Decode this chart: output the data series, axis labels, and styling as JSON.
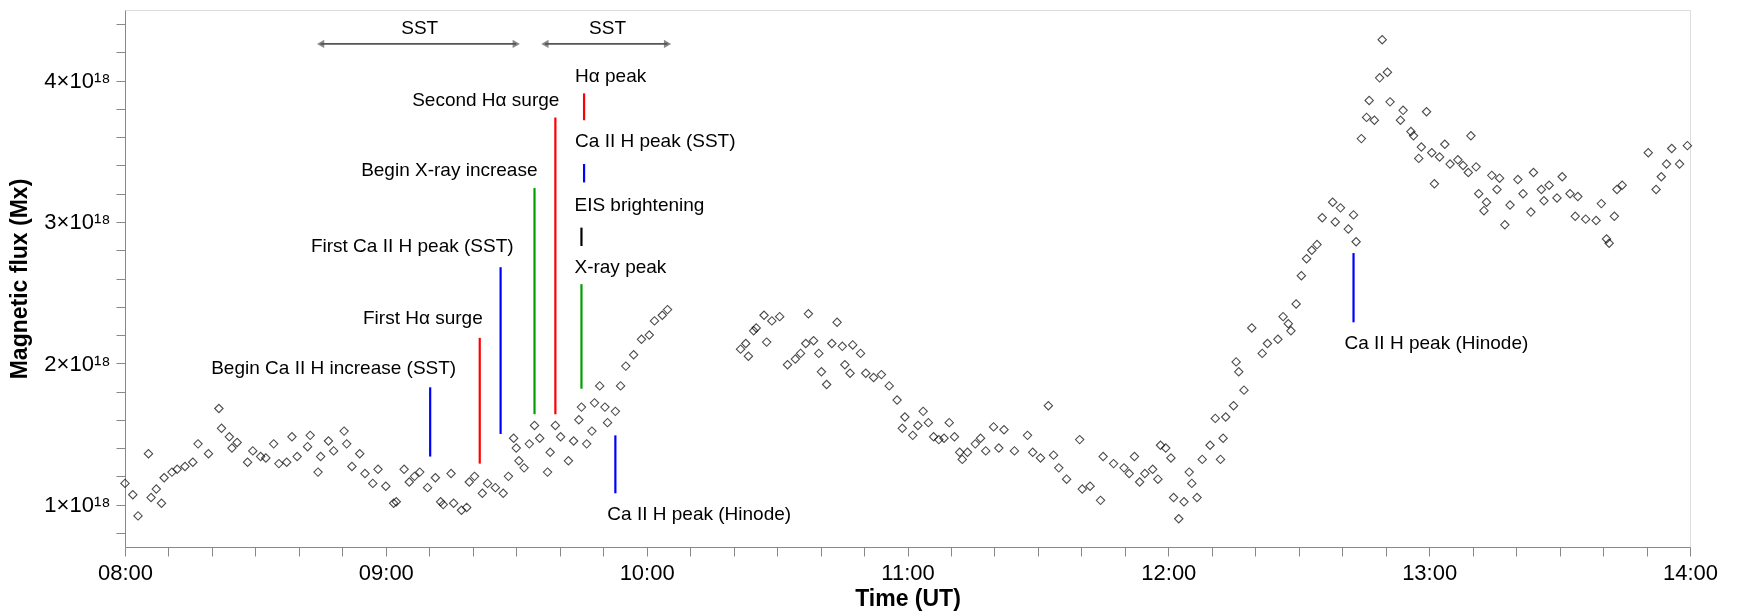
{
  "chart_data": {
    "type": "scatter",
    "xlabel": "Time (UT)",
    "ylabel": "Magnetic flux (Mx)",
    "xlim": [
      8,
      14
    ],
    "ylim": [
      7e+17,
      4.5e+18
    ],
    "grid": false,
    "xticks": [
      {
        "value": 8,
        "label": "08:00"
      },
      {
        "value": 8.1667,
        "label": null
      },
      {
        "value": 8.3333,
        "label": null
      },
      {
        "value": 8.5,
        "label": null
      },
      {
        "value": 8.6667,
        "label": null
      },
      {
        "value": 8.8333,
        "label": null
      },
      {
        "value": 9,
        "label": "09:00"
      },
      {
        "value": 9.1667,
        "label": null
      },
      {
        "value": 9.3333,
        "label": null
      },
      {
        "value": 9.5,
        "label": null
      },
      {
        "value": 9.6667,
        "label": null
      },
      {
        "value": 9.8333,
        "label": null
      },
      {
        "value": 10,
        "label": "10:00"
      },
      {
        "value": 10.1667,
        "label": null
      },
      {
        "value": 10.3333,
        "label": null
      },
      {
        "value": 10.5,
        "label": null
      },
      {
        "value": 10.6667,
        "label": null
      },
      {
        "value": 10.8333,
        "label": null
      },
      {
        "value": 11,
        "label": "11:00"
      },
      {
        "value": 11.1667,
        "label": null
      },
      {
        "value": 11.3333,
        "label": null
      },
      {
        "value": 11.5,
        "label": null
      },
      {
        "value": 11.6667,
        "label": null
      },
      {
        "value": 11.8333,
        "label": null
      },
      {
        "value": 12,
        "label": "12:00"
      },
      {
        "value": 12.1667,
        "label": null
      },
      {
        "value": 12.3333,
        "label": null
      },
      {
        "value": 12.5,
        "label": null
      },
      {
        "value": 12.6667,
        "label": null
      },
      {
        "value": 12.8333,
        "label": null
      },
      {
        "value": 13,
        "label": "13:00"
      },
      {
        "value": 13.1667,
        "label": null
      },
      {
        "value": 13.3333,
        "label": null
      },
      {
        "value": 13.5,
        "label": null
      },
      {
        "value": 13.6667,
        "label": null
      },
      {
        "value": 13.8333,
        "label": null
      },
      {
        "value": 14,
        "label": "14:00"
      }
    ],
    "yticks": [
      {
        "value": 8e+17,
        "label": null
      },
      {
        "value": 1e+18,
        "label": "1×10¹⁸"
      },
      {
        "value": 1.2e+18,
        "label": null
      },
      {
        "value": 1.4e+18,
        "label": null
      },
      {
        "value": 1.6e+18,
        "label": null
      },
      {
        "value": 1.8e+18,
        "label": null
      },
      {
        "value": 2e+18,
        "label": "2×10¹⁸"
      },
      {
        "value": 2.2e+18,
        "label": null
      },
      {
        "value": 2.4e+18,
        "label": null
      },
      {
        "value": 2.6e+18,
        "label": null
      },
      {
        "value": 2.8e+18,
        "label": null
      },
      {
        "value": 3e+18,
        "label": "3×10¹⁸"
      },
      {
        "value": 3.2e+18,
        "label": null
      },
      {
        "value": 3.4e+18,
        "label": null
      },
      {
        "value": 3.6e+18,
        "label": null
      },
      {
        "value": 3.8e+18,
        "label": null
      },
      {
        "value": 4e+18,
        "label": "4×10¹⁸"
      },
      {
        "value": 4.2e+18,
        "label": null
      },
      {
        "value": 4.4e+18,
        "label": null
      }
    ],
    "series": [
      {
        "marker": "diamond",
        "color": "#000000",
        "x": [
          8.0,
          8.03,
          8.05,
          8.09,
          8.1,
          8.12,
          8.14,
          8.15,
          8.18,
          8.2,
          8.23,
          8.26,
          8.28,
          8.32,
          8.36,
          8.37,
          8.4,
          8.41,
          8.43,
          8.47,
          8.49,
          8.52,
          8.54,
          8.57,
          8.59,
          8.62,
          8.64,
          8.66,
          8.7,
          8.71,
          8.74,
          8.75,
          8.78,
          8.8,
          8.84,
          8.85,
          8.87,
          8.9,
          8.92,
          8.95,
          8.97,
          9.0,
          9.03,
          9.04,
          9.07,
          9.09,
          9.11,
          9.13,
          9.16,
          9.19,
          9.21,
          9.22,
          9.25,
          9.26,
          9.29,
          9.31,
          9.32,
          9.34,
          9.37,
          9.39,
          9.42,
          9.45,
          9.47,
          9.49,
          9.5,
          9.51,
          9.53,
          9.55,
          9.57,
          9.59,
          9.62,
          9.63,
          9.65,
          9.67,
          9.7,
          9.72,
          9.74,
          9.75,
          9.77,
          9.79,
          9.8,
          9.82,
          9.84,
          9.85,
          9.88,
          9.9,
          9.92,
          9.95,
          9.98,
          10.01,
          10.03,
          10.06,
          10.08,
          10.36,
          10.38,
          10.39,
          10.41,
          10.42,
          10.45,
          10.46,
          10.48,
          10.51,
          10.54,
          10.57,
          10.59,
          10.61,
          10.62,
          10.64,
          10.66,
          10.67,
          10.69,
          10.71,
          10.73,
          10.75,
          10.76,
          10.78,
          10.79,
          10.82,
          10.84,
          10.87,
          10.9,
          10.93,
          10.96,
          10.98,
          10.99,
          11.02,
          11.04,
          11.06,
          11.08,
          11.1,
          11.12,
          11.14,
          11.16,
          11.18,
          11.2,
          11.21,
          11.23,
          11.26,
          11.28,
          11.3,
          11.33,
          11.35,
          11.37,
          11.41,
          11.46,
          11.48,
          11.51,
          11.54,
          11.56,
          11.58,
          11.61,
          11.66,
          11.67,
          11.7,
          11.74,
          11.75,
          11.79,
          11.83,
          11.85,
          11.87,
          11.89,
          11.91,
          11.94,
          11.96,
          11.97,
          11.99,
          12.01,
          12.02,
          12.04,
          12.06,
          12.08,
          12.09,
          12.11,
          12.13,
          12.16,
          12.18,
          12.2,
          12.21,
          12.22,
          12.25,
          12.26,
          12.27,
          12.29,
          12.32,
          12.36,
          12.38,
          12.42,
          12.44,
          12.46,
          12.47,
          12.49,
          12.51,
          12.53,
          12.55,
          12.57,
          12.59,
          12.63,
          12.64,
          12.66,
          12.69,
          12.71,
          12.72,
          12.74,
          12.76,
          12.77,
          12.79,
          12.81,
          12.82,
          12.84,
          12.85,
          12.89,
          12.9,
          12.93,
          12.94,
          12.96,
          12.97,
          12.99,
          13.01,
          13.02,
          13.04,
          13.06,
          13.08,
          13.11,
          13.13,
          13.15,
          13.16,
          13.18,
          13.19,
          13.21,
          13.22,
          13.24,
          13.26,
          13.27,
          13.29,
          13.31,
          13.34,
          13.36,
          13.39,
          13.4,
          13.43,
          13.44,
          13.46,
          13.49,
          13.51,
          13.54,
          13.56,
          13.57,
          13.6,
          13.64,
          13.66,
          13.68,
          13.69,
          13.71,
          13.72,
          13.74,
          13.84,
          13.87,
          13.89,
          13.91,
          13.93,
          13.96,
          13.99
        ],
        "values": [
          1.15e+18,
          1.07e+18,
          9.2e+17,
          1.36e+18,
          1.05e+18,
          1.11e+18,
          1.01e+18,
          1.19e+18,
          1.23e+18,
          1.25e+18,
          1.27e+18,
          1.3e+18,
          1.43e+18,
          1.36e+18,
          1.68e+18,
          1.54e+18,
          1.48e+18,
          1.4e+18,
          1.44e+18,
          1.3e+18,
          1.38e+18,
          1.34e+18,
          1.33e+18,
          1.43e+18,
          1.29e+18,
          1.3e+18,
          1.48e+18,
          1.34e+18,
          1.41e+18,
          1.49e+18,
          1.23e+18,
          1.34e+18,
          1.45e+18,
          1.38e+18,
          1.52e+18,
          1.43e+18,
          1.27e+18,
          1.36e+18,
          1.22e+18,
          1.15e+18,
          1.25e+18,
          1.13e+18,
          1.01e+18,
          1.02e+18,
          1.25e+18,
          1.16e+18,
          1.2e+18,
          1.23e+18,
          1.12e+18,
          1.19e+18,
          1.02e+18,
          1e+18,
          1.22e+18,
          1.01e+18,
          9.6e+17,
          9.8e+17,
          1.16e+18,
          1.2e+18,
          1.08e+18,
          1.15e+18,
          1.12e+18,
          1.08e+18,
          1.2e+18,
          1.47e+18,
          1.4e+18,
          1.31e+18,
          1.26e+18,
          1.43e+18,
          1.56e+18,
          1.47e+18,
          1.23e+18,
          1.37e+18,
          1.56e+18,
          1.48e+18,
          1.31e+18,
          1.45e+18,
          1.6e+18,
          1.69e+18,
          1.43e+18,
          1.52e+18,
          1.72e+18,
          1.84e+18,
          1.69e+18,
          1.58e+18,
          1.66e+18,
          1.84e+18,
          1.98e+18,
          2.06e+18,
          2.17e+18,
          2.2e+18,
          2.3e+18,
          2.34e+18,
          2.38e+18,
          2.1e+18,
          2.14e+18,
          2.05e+18,
          2.23e+18,
          2.25e+18,
          2.34e+18,
          2.15e+18,
          2.3e+18,
          2.33e+18,
          1.99e+18,
          2.03e+18,
          2.07e+18,
          2.14e+18,
          2.35e+18,
          2.16e+18,
          2.07e+18,
          1.94e+18,
          1.85e+18,
          2.14e+18,
          2.29e+18,
          2.12e+18,
          1.99e+18,
          1.93e+18,
          2.13e+18,
          2.07e+18,
          1.93e+18,
          1.9e+18,
          1.92e+18,
          1.84e+18,
          1.74e+18,
          1.54e+18,
          1.62e+18,
          1.49e+18,
          1.56e+18,
          1.66e+18,
          1.58e+18,
          1.48e+18,
          1.46e+18,
          1.47e+18,
          1.58e+18,
          1.48e+18,
          1.37e+18,
          1.32e+18,
          1.37e+18,
          1.43e+18,
          1.47e+18,
          1.38e+18,
          1.55e+18,
          1.4e+18,
          1.53e+18,
          1.38e+18,
          1.49e+18,
          1.37e+18,
          1.33e+18,
          1.7e+18,
          1.35e+18,
          1.26e+18,
          1.18e+18,
          1.46e+18,
          1.11e+18,
          1.13e+18,
          1.03e+18,
          1.34e+18,
          1.29e+18,
          1.26e+18,
          1.22e+18,
          1.34e+18,
          1.16e+18,
          1.22e+18,
          1.25e+18,
          1.18e+18,
          1.42e+18,
          1.4e+18,
          1.33e+18,
          1.05e+18,
          9e+17,
          1.02e+18,
          1.23e+18,
          1.15e+18,
          1.05e+18,
          1.32e+18,
          1.42e+18,
          1.61e+18,
          1.32e+18,
          1.47e+18,
          1.62e+18,
          1.7e+18,
          2.01e+18,
          1.94e+18,
          1.81e+18,
          2.25e+18,
          2.07e+18,
          2.14e+18,
          2.17e+18,
          2.33e+18,
          2.28e+18,
          2.23e+18,
          2.42e+18,
          2.62e+18,
          2.74e+18,
          2.8e+18,
          2.84e+18,
          3.03e+18,
          3.14e+18,
          3e+18,
          3.1e+18,
          2.95e+18,
          3.05e+18,
          2.86e+18,
          3.59e+18,
          3.74e+18,
          3.86e+18,
          3.72e+18,
          4.02e+18,
          4.29e+18,
          4.06e+18,
          3.85e+18,
          3.72e+18,
          3.79e+18,
          3.64e+18,
          3.61e+18,
          3.45e+18,
          3.53e+18,
          3.78e+18,
          3.49e+18,
          3.27e+18,
          3.46e+18,
          3.55e+18,
          3.41e+18,
          3.44e+18,
          3.4e+18,
          3.35e+18,
          3.61e+18,
          3.39e+18,
          3.2e+18,
          3.08e+18,
          3.14e+18,
          3.33e+18,
          3.23e+18,
          3.31e+18,
          2.98e+18,
          3.12e+18,
          3.3e+18,
          3.2e+18,
          3.07e+18,
          3.35e+18,
          3.23e+18,
          3.15e+18,
          3.26e+18,
          3.17e+18,
          3.32e+18,
          3.2e+18,
          3.04e+18,
          3.18e+18,
          3.02e+18,
          3.01e+18,
          3.13e+18,
          2.88e+18,
          2.85e+18,
          3.04e+18,
          3.23e+18,
          3.26e+18,
          3.49e+18,
          3.23e+18,
          3.32e+18,
          3.41e+18,
          3.52e+18,
          3.41e+18,
          3.54e+18
        ]
      },
      {
        "type": "line",
        "color": "#0000ff",
        "x": [
          9.17,
          9.17
        ],
        "values": [
          1.34e+18,
          1.83e+18
        ]
      },
      {
        "type": "line",
        "color": "#ff0000",
        "x": [
          9.36,
          9.36
        ],
        "values": [
          1.29e+18,
          2.18e+18
        ]
      },
      {
        "type": "line",
        "color": "#0000ff",
        "x": [
          9.44,
          9.44
        ],
        "values": [
          1.5e+18,
          2.68e+18
        ]
      },
      {
        "type": "line",
        "color": "#00a000",
        "x": [
          9.57,
          9.57
        ],
        "values": [
          1.64e+18,
          3.24e+18
        ]
      },
      {
        "type": "line",
        "color": "#ff0000",
        "x": [
          9.65,
          9.65
        ],
        "values": [
          1.64e+18,
          3.74e+18
        ]
      },
      {
        "type": "line",
        "color": "#ff0000",
        "x": [
          9.76,
          9.76
        ],
        "values": [
          3.72e+18,
          3.91e+18
        ]
      },
      {
        "type": "line",
        "color": "#0000ff",
        "x": [
          9.76,
          9.76
        ],
        "values": [
          3.28e+18,
          3.41e+18
        ]
      },
      {
        "type": "line",
        "color": "#000000",
        "x": [
          9.75,
          9.75
        ],
        "values": [
          2.83e+18,
          2.96e+18
        ]
      },
      {
        "type": "line",
        "color": "#00a000",
        "x": [
          9.75,
          9.75
        ],
        "values": [
          1.82e+18,
          2.56e+18
        ]
      },
      {
        "type": "line",
        "color": "#0000ff",
        "x": [
          9.88,
          9.88
        ],
        "values": [
          1.08e+18,
          1.49e+18
        ]
      },
      {
        "type": "line",
        "color": "#0000ff",
        "x": [
          12.71,
          12.71
        ],
        "values": [
          2.29e+18,
          2.78e+18
        ]
      },
      {
        "type": "line",
        "marker": "triangle",
        "color": "#555555",
        "x": [
          8.75,
          9.5
        ],
        "values": [
          4.26e+18,
          4.26e+18
        ]
      },
      {
        "type": "line",
        "marker": "triangle",
        "color": "#555555",
        "x": [
          9.61,
          10.08
        ],
        "values": [
          4.26e+18,
          4.26e+18
        ]
      }
    ],
    "annotations": [
      {
        "text": "Begin Ca II H increase (SST)",
        "x": 9.17,
        "y": 1.83e+18
      },
      {
        "text": "First Hα surge",
        "x": 9.36,
        "y": 2.18e+18
      },
      {
        "text": "First Ca II H peak (SST)",
        "x": 9.44,
        "y": 2.68e+18
      },
      {
        "text": "Begin X-ray increase",
        "x": 9.57,
        "y": 3.24e+18
      },
      {
        "text": "Second Hα surge",
        "x": 9.65,
        "y": 3.74e+18
      },
      {
        "text": "Hα peak",
        "x": 9.76,
        "y": 3.91e+18
      },
      {
        "text": "Ca II H peak (SST)",
        "x": 9.76,
        "y": 3.41e+18
      },
      {
        "text": "EIS brightening",
        "x": 9.75,
        "y": 2.96e+18
      },
      {
        "text": "X-ray peak",
        "x": 9.75,
        "y": 2.56e+18
      },
      {
        "text": "Ca II H peak (Hinode)",
        "x": 9.88,
        "y": 1.08e+18
      },
      {
        "text": "Ca II H peak (Hinode)",
        "x": 12.71,
        "y": 2.29e+18
      },
      {
        "text": "SST",
        "x": 9.13,
        "y": 4.26e+18
      },
      {
        "text": "SST",
        "x": 9.85,
        "y": 4.26e+18
      }
    ]
  }
}
